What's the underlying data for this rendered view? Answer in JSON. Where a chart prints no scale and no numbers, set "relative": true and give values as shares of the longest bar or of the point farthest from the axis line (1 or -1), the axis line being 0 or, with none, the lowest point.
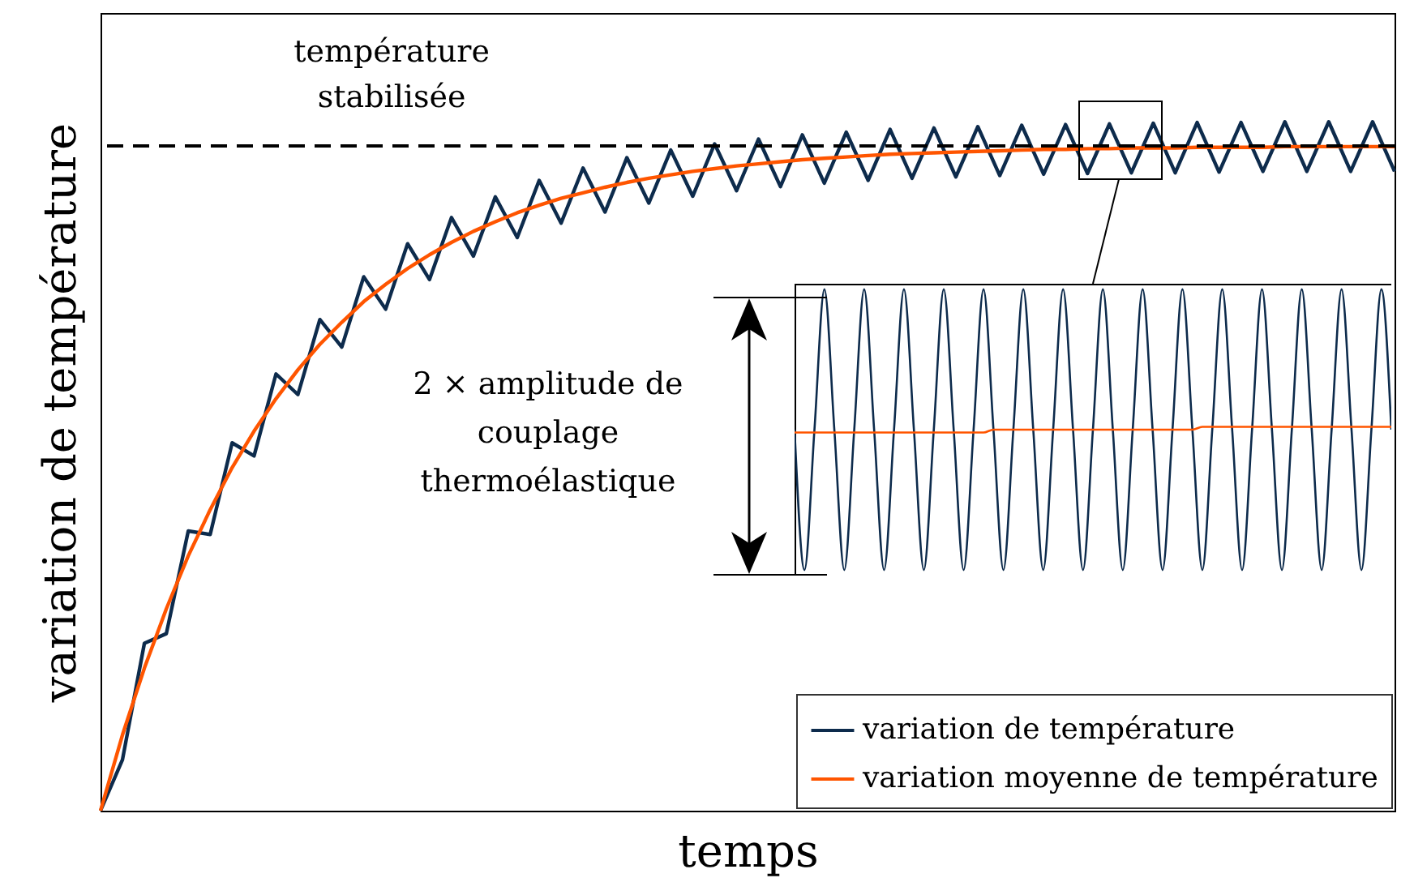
{
  "chart_data": [
    {
      "type": "line",
      "relative": true,
      "xlabel": "temps",
      "ylabel": "variation de température",
      "legend": "bottom right",
      "categories": [
        null,
        null,
        null,
        null,
        null,
        null,
        null,
        null,
        null,
        null,
        null,
        null,
        null,
        null,
        null,
        null,
        null,
        null,
        null,
        null,
        null,
        null,
        null,
        null,
        null,
        null,
        null,
        null,
        null,
        null,
        null,
        null,
        null,
        null,
        null,
        null,
        null,
        null,
        null,
        null,
        null,
        null,
        null,
        null,
        null,
        null,
        null,
        null,
        null,
        null,
        null,
        null,
        null,
        null,
        null,
        null,
        null,
        null,
        null,
        null
      ],
      "series": [
        {
          "name": "variation de température",
          "color": "#0d2b4c",
          "values": [
            0,
            0.074,
            0.243,
            0.257,
            0.406,
            0.401,
            0.534,
            0.515,
            0.634,
            0.604,
            0.713,
            0.673,
            0.775,
            0.728,
            0.823,
            0.771,
            0.861,
            0.805,
            0.891,
            0.832,
            0.915,
            0.853,
            0.933,
            0.869,
            0.948,
            0.882,
            0.959,
            0.892,
            0.968,
            0.9,
            0.975,
            0.906,
            0.981,
            0.911,
            0.985,
            0.915,
            0.989,
            0.918,
            0.991,
            0.92,
            0.993,
            0.922,
            0.995,
            0.924,
            0.996,
            0.925,
            0.997,
            0.926,
            0.998,
            0.926,
            0.999,
            0.927,
            0.999,
            0.928,
            1.0,
            0.928,
            1.0,
            0.928,
            1.0,
            0.928
          ]
        },
        {
          "name": "variation moyenne de température",
          "color": "#ff5500",
          "values": [
            0,
            0.11,
            0.207,
            0.293,
            0.37,
            0.437,
            0.498,
            0.551,
            0.598,
            0.64,
            0.677,
            0.709,
            0.739,
            0.764,
            0.787,
            0.807,
            0.825,
            0.841,
            0.855,
            0.868,
            0.879,
            0.889,
            0.897,
            0.905,
            0.912,
            0.918,
            0.923,
            0.928,
            0.932,
            0.936,
            0.939,
            0.942,
            0.945,
            0.947,
            0.949,
            0.951,
            0.953,
            0.954,
            0.955,
            0.956,
            0.957,
            0.958,
            0.959,
            0.96,
            0.96,
            0.961,
            0.961,
            0.962,
            0.962,
            0.962,
            0.963,
            0.963,
            0.963,
            0.963,
            0.964,
            0.964,
            0.964,
            0.964,
            0.964,
            0.964
          ]
        }
      ],
      "ref_lines": [
        {
          "axis": "y",
          "value": 0.965,
          "label": "température stabilisée",
          "line_style": "dashed",
          "color": "#000000"
        }
      ]
    },
    {
      "type": "line",
      "relative": true,
      "annotations": [
        "2 × amplitude de couplage thermoélastique"
      ],
      "categories": [
        null,
        null,
        null,
        null,
        null,
        null,
        null,
        null,
        null,
        null,
        null,
        null,
        null,
        null,
        null,
        null,
        null,
        null,
        null,
        null,
        null,
        null,
        null,
        null,
        null,
        null,
        null,
        null,
        null,
        null,
        null,
        null,
        null,
        null,
        null,
        null,
        null,
        null,
        null,
        null,
        null,
        null,
        null,
        null,
        null,
        null,
        null,
        null,
        null,
        null,
        null,
        null,
        null,
        null,
        null,
        null,
        null,
        null,
        null,
        null,
        null
      ],
      "series": [
        {
          "color": "#0d2b4c",
          "values": [
            0.5,
            0,
            0.5,
            1,
            0.5,
            0,
            0.5,
            1,
            0.5,
            0,
            0.5,
            1,
            0.5,
            0,
            0.5,
            1,
            0.5,
            0,
            0.5,
            1,
            0.5,
            0,
            0.5,
            1,
            0.5,
            0,
            0.5,
            1,
            0.5,
            0,
            0.5,
            1,
            0.5,
            0,
            0.5,
            1,
            0.5,
            0,
            0.5,
            1,
            0.5,
            0,
            0.5,
            1,
            0.5,
            0,
            0.5,
            1,
            0.5,
            0,
            0.5,
            1,
            0.5,
            0,
            0.5,
            1,
            0.5,
            0,
            0.5,
            1,
            0.5
          ]
        },
        {
          "color": "#ff5500",
          "values": [
            0.49,
            0.49,
            0.49,
            0.49,
            0.49,
            0.49,
            0.49,
            0.49,
            0.49,
            0.49,
            0.49,
            0.49,
            0.49,
            0.49,
            0.49,
            0.49,
            0.49,
            0.49,
            0.49,
            0.49,
            0.5,
            0.5,
            0.5,
            0.5,
            0.5,
            0.5,
            0.5,
            0.5,
            0.5,
            0.5,
            0.5,
            0.5,
            0.5,
            0.5,
            0.5,
            0.5,
            0.5,
            0.5,
            0.5,
            0.5,
            0.5,
            0.51,
            0.51,
            0.51,
            0.51,
            0.51,
            0.51,
            0.51,
            0.51,
            0.51,
            0.51,
            0.51,
            0.51,
            0.51,
            0.51,
            0.51,
            0.51,
            0.51,
            0.51,
            0.51,
            0.51
          ]
        }
      ]
    }
  ]
}
